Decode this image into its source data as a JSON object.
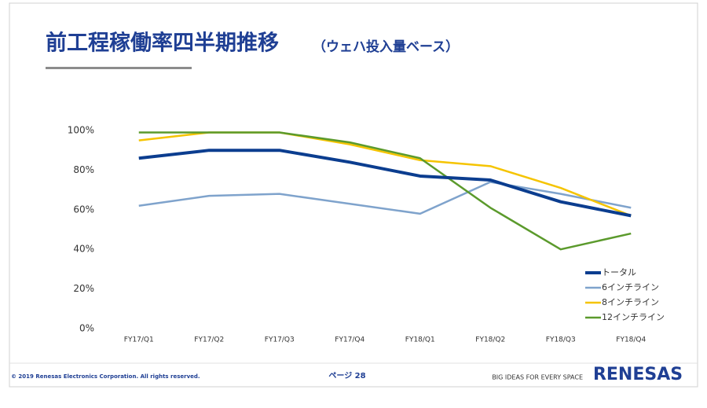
{
  "title": "前工程稼働率四半期推移",
  "subtitle": "（ウェハ投入量ベース）",
  "chart_data": {
    "type": "line",
    "categories": [
      "FY17/Q1",
      "FY17/Q2",
      "FY17/Q3",
      "FY17/Q4",
      "FY18/Q1",
      "FY18/Q2",
      "FY18/Q3",
      "FY18/Q4"
    ],
    "series": [
      {
        "name": "トータル",
        "color": "#0b3d8f",
        "width": 4,
        "values": [
          86,
          90,
          90,
          84,
          77,
          75,
          64,
          57
        ]
      },
      {
        "name": "6インチライン",
        "color": "#7fa3cc",
        "width": 2.5,
        "values": [
          62,
          67,
          68,
          63,
          58,
          74,
          68,
          61
        ]
      },
      {
        "name": "8インチライン",
        "color": "#f5c400",
        "width": 2.5,
        "values": [
          95,
          99,
          99,
          93,
          85,
          82,
          71,
          57
        ]
      },
      {
        "name": "12インチライン",
        "color": "#5b9a2c",
        "width": 2.5,
        "values": [
          99,
          99,
          99,
          94,
          86,
          61,
          40,
          48
        ]
      }
    ],
    "ylim": [
      0,
      100
    ],
    "yticks": [
      {
        "value": 0,
        "label": "0%"
      },
      {
        "value": 20,
        "label": "20%"
      },
      {
        "value": 40,
        "label": "40%"
      },
      {
        "value": 60,
        "label": "60%"
      },
      {
        "value": 80,
        "label": "80%"
      },
      {
        "value": 100,
        "label": "100%"
      }
    ],
    "grid": false,
    "legend_position": "lower right"
  },
  "footer": {
    "copyright": "© 2019 Renesas Electronics Corporation. All rights reserved.",
    "page": "ページ 28",
    "slogan": "BIG IDEAS FOR EVERY SPACE",
    "logo": "RENESAS"
  }
}
